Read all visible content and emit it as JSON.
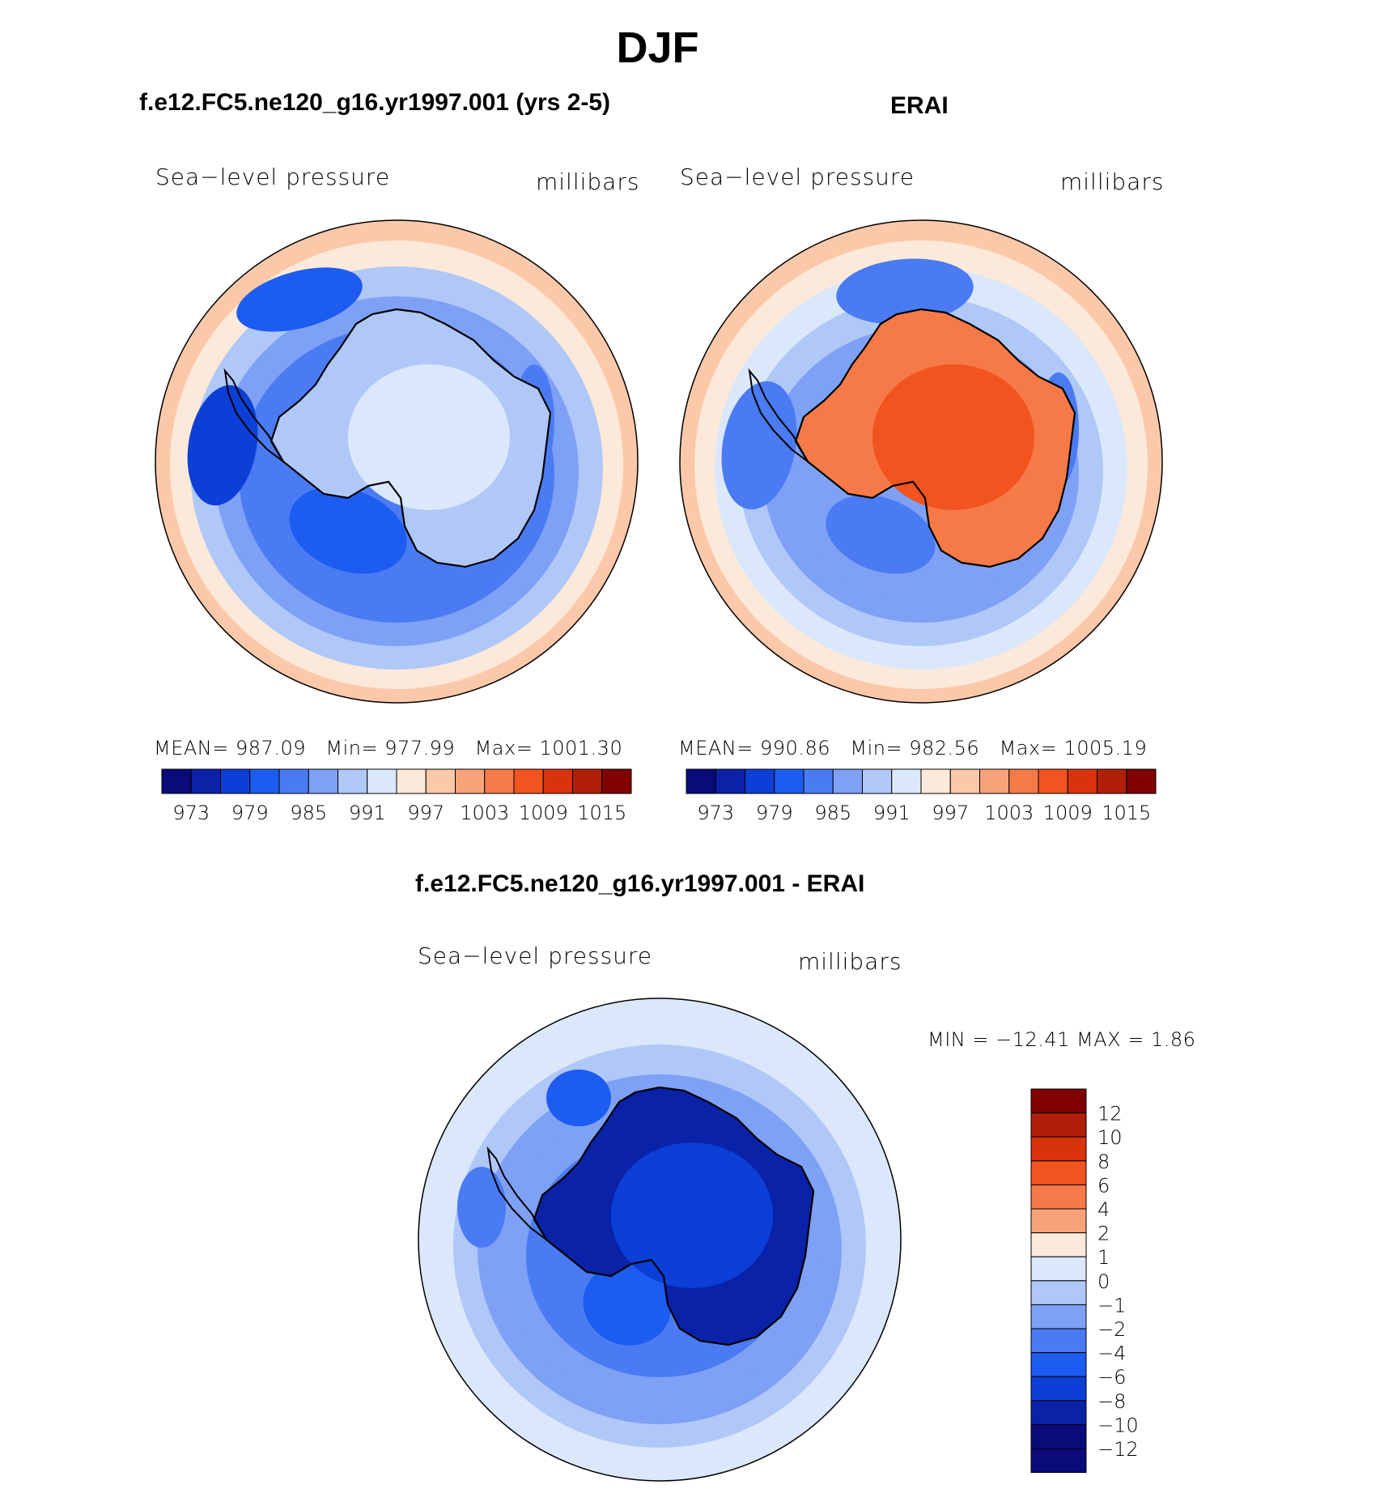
{
  "title": "DJF",
  "palette": [
    "#0a0a7a",
    "#0a22a8",
    "#0b3fd6",
    "#1d5cf0",
    "#4a7bf2",
    "#7ea1f5",
    "#b0c8f8",
    "#dbe8fb",
    "#fde9d9",
    "#fbc8aa",
    "#f8a27a",
    "#f57a48",
    "#f2541f",
    "#d9330c",
    "#b02008",
    "#800000"
  ],
  "panels": [
    {
      "id": "model",
      "title": "f.e12.FC5.ne120_g16.yr1997.001 (yrs 2-5)",
      "variable": "Sea−level pressure",
      "units": "millibars",
      "stats": {
        "mean_label": "MEAN=",
        "mean": "987.09",
        "min_label": "Min=",
        "min": "977.99",
        "max_label": "Max=",
        "max": "1001.30"
      },
      "colorbar_ticks": [
        "973",
        "979",
        "985",
        "991",
        "997",
        "1003",
        "1009",
        "1015"
      ],
      "antarctica_level": 7
    },
    {
      "id": "obs",
      "title": "ERAI",
      "variable": "Sea−level pressure",
      "units": "millibars",
      "stats": {
        "mean_label": "MEAN=",
        "mean": "990.86",
        "min_label": "Min=",
        "min": "982.56",
        "max_label": "Max=",
        "max": "1005.19"
      },
      "colorbar_ticks": [
        "973",
        "979",
        "985",
        "991",
        "997",
        "1003",
        "1009",
        "1015"
      ],
      "antarctica_level": 10
    },
    {
      "id": "diff",
      "title": "f.e12.FC5.ne120_g16.yr1997.001 - ERAI",
      "variable": "Sea−level pressure",
      "units": "millibars",
      "stats_text": "MIN = −12.41  MAX =    1.86",
      "colorbar_ticks": [
        "12",
        "10",
        "8",
        "6",
        "4",
        "2",
        "1",
        "0",
        "−1",
        "−2",
        "−4",
        "−6",
        "−8",
        "−10",
        "−12"
      ],
      "antarctica_level": 2
    }
  ]
}
